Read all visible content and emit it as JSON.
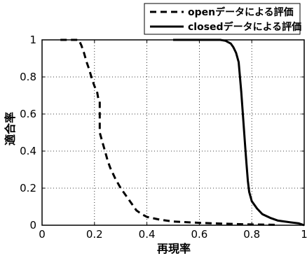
{
  "chart_data": {
    "type": "line",
    "title": "",
    "xlabel": "再現率",
    "ylabel": "適合率",
    "xlim": [
      0,
      1
    ],
    "ylim": [
      0,
      1
    ],
    "xticks": [
      "0",
      "0.2",
      "0.4",
      "0.6",
      "0.8",
      "1"
    ],
    "yticks": [
      "0",
      "0.2",
      "0.4",
      "0.6",
      "0.8",
      "1"
    ],
    "grid": true,
    "legend_position": "top-right",
    "series": [
      {
        "name": "openデータによる評価",
        "style": "dashed",
        "color": "#000000",
        "points": [
          [
            0.07,
            1.0
          ],
          [
            0.14,
            1.0
          ],
          [
            0.15,
            0.97
          ],
          [
            0.16,
            0.93
          ],
          [
            0.17,
            0.88
          ],
          [
            0.18,
            0.84
          ],
          [
            0.19,
            0.79
          ],
          [
            0.2,
            0.75
          ],
          [
            0.21,
            0.72
          ],
          [
            0.215,
            0.68
          ],
          [
            0.22,
            0.67
          ],
          [
            0.22,
            0.5
          ],
          [
            0.23,
            0.45
          ],
          [
            0.24,
            0.4
          ],
          [
            0.25,
            0.35
          ],
          [
            0.26,
            0.31
          ],
          [
            0.28,
            0.25
          ],
          [
            0.3,
            0.2
          ],
          [
            0.32,
            0.16
          ],
          [
            0.34,
            0.12
          ],
          [
            0.36,
            0.08
          ],
          [
            0.38,
            0.06
          ],
          [
            0.4,
            0.045
          ],
          [
            0.45,
            0.03
          ],
          [
            0.5,
            0.02
          ],
          [
            0.6,
            0.013
          ],
          [
            0.7,
            0.008
          ],
          [
            0.8,
            0.004
          ],
          [
            0.9,
            0.002
          ]
        ]
      },
      {
        "name": "closedデータによる評価",
        "style": "solid",
        "color": "#000000",
        "points": [
          [
            0.5,
            1.0
          ],
          [
            0.68,
            1.0
          ],
          [
            0.7,
            0.995
          ],
          [
            0.72,
            0.98
          ],
          [
            0.73,
            0.96
          ],
          [
            0.74,
            0.93
          ],
          [
            0.75,
            0.88
          ],
          [
            0.76,
            0.72
          ],
          [
            0.765,
            0.62
          ],
          [
            0.77,
            0.52
          ],
          [
            0.775,
            0.42
          ],
          [
            0.78,
            0.33
          ],
          [
            0.785,
            0.24
          ],
          [
            0.79,
            0.18
          ],
          [
            0.8,
            0.13
          ],
          [
            0.82,
            0.09
          ],
          [
            0.84,
            0.06
          ],
          [
            0.87,
            0.04
          ],
          [
            0.9,
            0.025
          ],
          [
            0.95,
            0.015
          ],
          [
            0.98,
            0.01
          ],
          [
            1.0,
            0.0
          ]
        ]
      }
    ]
  }
}
